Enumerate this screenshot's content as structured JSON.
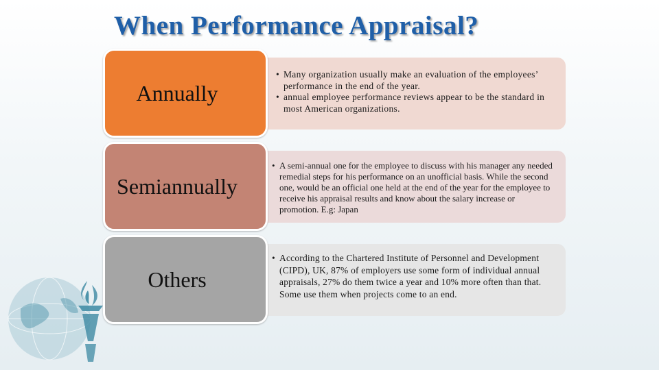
{
  "slide": {
    "title": "When Performance Appraisal?",
    "rows": [
      {
        "label": "Annually",
        "color": "#ed7d31",
        "bullets": [
          "Many organization usually make an evaluation  of the employees’ performance in the end of the year.",
          "annual employee performance reviews appear to be the standard in most American organizations."
        ]
      },
      {
        "label": "Semiannually",
        "color": "#c38474",
        "bullets": [
          "A semi-annual one for the employee to discuss with his manager any needed remedial steps for his performance on an unofficial basis. While the second one, would be an official one held at the end of the year for the employee to receive his appraisal results and know about the salary increase or promotion. E.g: Japan"
        ]
      },
      {
        "label": "Others",
        "color": "#a5a5a5",
        "bullets": [
          "According to the Chartered Institute of Personnel and Development (CIPD), UK, 87% of employers use some form of individual annual appraisals, 27% do them twice a year and 10% more often than that. Some use them when projects come to an end."
        ]
      }
    ]
  },
  "logo": {
    "icon": "globe-torch-icon"
  },
  "colors": {
    "title": "#1f5fa8",
    "accent": "#ed7d31"
  }
}
